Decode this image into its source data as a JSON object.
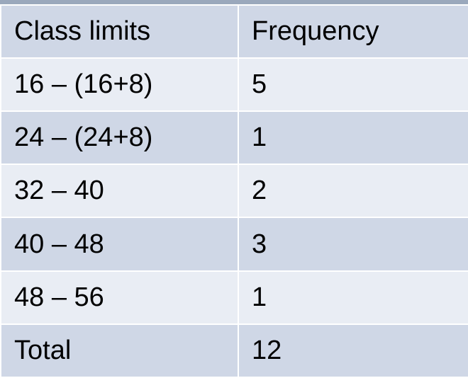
{
  "table": {
    "headers": [
      "Class limits",
      "Frequency"
    ],
    "rows": [
      [
        "16 – (16+8)",
        "5"
      ],
      [
        "24 – (24+8)",
        "1"
      ],
      [
        "32 – 40",
        "2"
      ],
      [
        "40 – 48",
        "3"
      ],
      [
        "48 – 56",
        "1"
      ],
      [
        "Total",
        "12"
      ]
    ]
  }
}
